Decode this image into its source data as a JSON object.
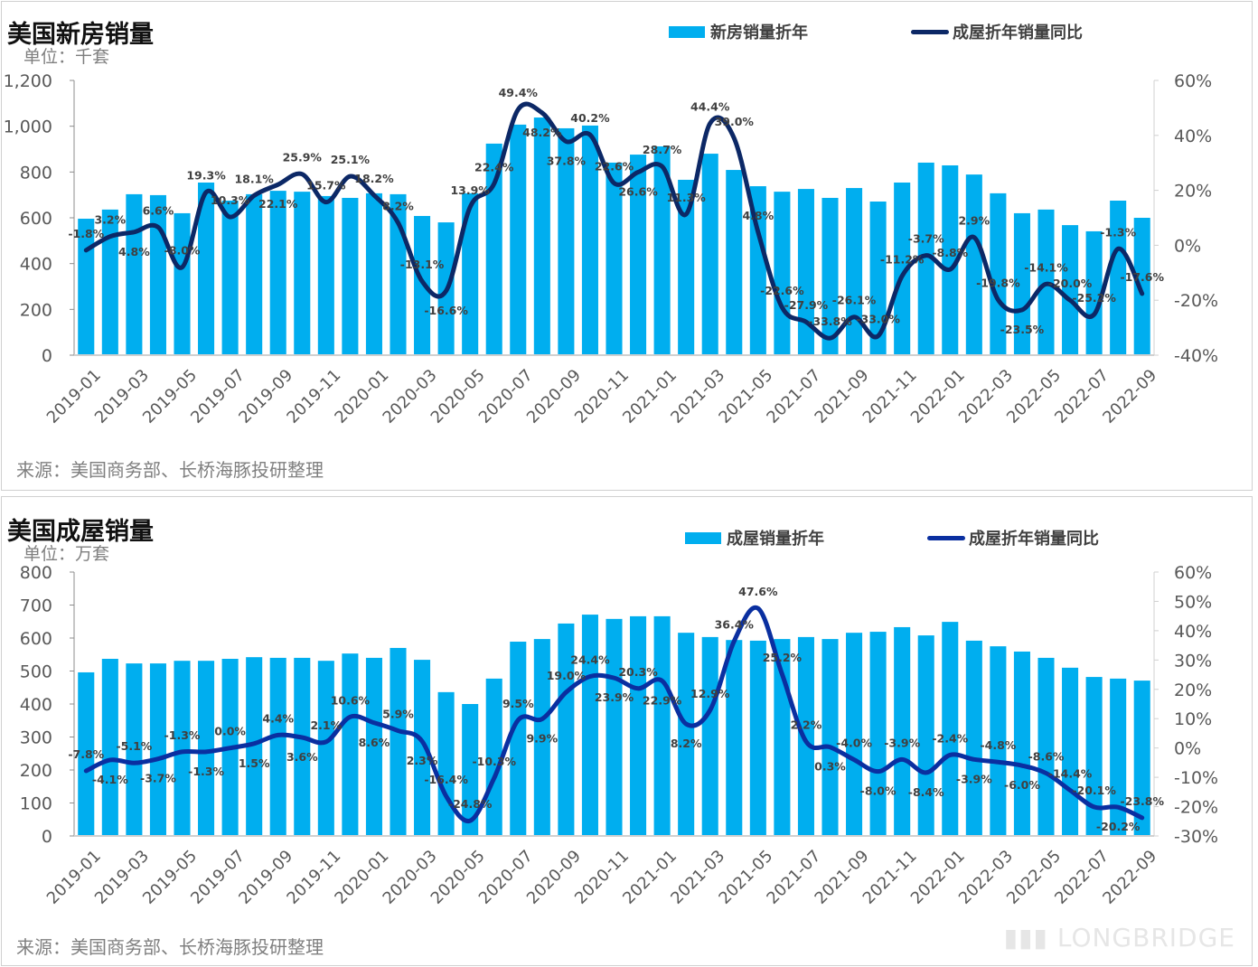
{
  "colors": {
    "bar": "#00aeef",
    "line_top": "#0c2866",
    "line_bottom": "#0a2fa0",
    "axis_text": "#595959",
    "label_text": "#404040"
  },
  "charts": [
    {
      "title": "美国新房销量",
      "unit": "单位：千套",
      "legend_bar": "新房销量折年",
      "legend_line": "成屋折年销量同比",
      "source": "来源：美国商务部、长桥海豚投研整理",
      "left_ticks": [
        "0",
        "200",
        "400",
        "600",
        "800",
        "1,000",
        "1,200"
      ],
      "right_ticks": [
        "-40%",
        "-20%",
        "0%",
        "20%",
        "40%",
        "60%"
      ]
    },
    {
      "title": "美国成屋销量",
      "unit": "单位：万套",
      "legend_bar": "成屋销量折年",
      "legend_line": "成屋折年销量同比",
      "source": "来源：美国商务部、长桥海豚投研整理",
      "left_ticks": [
        "0",
        "100",
        "200",
        "300",
        "400",
        "500",
        "600",
        "700",
        "800"
      ],
      "right_ticks": [
        "-30%",
        "-20%",
        "-10%",
        "0%",
        "10%",
        "20%",
        "30%",
        "40%",
        "50%",
        "60%"
      ]
    }
  ],
  "watermark": "LONGBRIDGE",
  "chart_data": [
    {
      "type": "bar+line",
      "title": "美国新房销量",
      "x": [
        "2019-01",
        "2019-02",
        "2019-03",
        "2019-04",
        "2019-05",
        "2019-06",
        "2019-07",
        "2019-08",
        "2019-09",
        "2019-10",
        "2019-11",
        "2019-12",
        "2020-01",
        "2020-02",
        "2020-03",
        "2020-04",
        "2020-05",
        "2020-06",
        "2020-07",
        "2020-08",
        "2020-09",
        "2020-10",
        "2020-11",
        "2020-12",
        "2021-01",
        "2021-02",
        "2021-03",
        "2021-04",
        "2021-05",
        "2021-06",
        "2021-07",
        "2021-08",
        "2021-09",
        "2021-10",
        "2021-11",
        "2021-12",
        "2022-01",
        "2022-02",
        "2022-03",
        "2022-04",
        "2022-05",
        "2022-06",
        "2022-07",
        "2022-08",
        "2022-09"
      ],
      "x_tick_labels": [
        "2019-01",
        "2019-03",
        "2019-05",
        "2019-07",
        "2019-09",
        "2019-11",
        "2020-01",
        "2020-03",
        "2020-05",
        "2020-07",
        "2020-09",
        "2020-11",
        "2021-01",
        "2021-03",
        "2021-05",
        "2021-07",
        "2021-09",
        "2021-11",
        "2022-01",
        "2022-03",
        "2022-05",
        "2022-07",
        "2022-09"
      ],
      "series": [
        {
          "name": "新房销量折年",
          "axis": "left",
          "type": "bar",
          "values": [
            596,
            636,
            703,
            699,
            620,
            754,
            675,
            703,
            718,
            714,
            695,
            687,
            707,
            703,
            608,
            580,
            707,
            924,
            1007,
            1038,
            991,
            1003,
            841,
            876,
            912,
            766,
            880,
            809,
            738,
            714,
            726,
            687,
            730,
            671,
            754,
            841,
            829,
            789,
            707,
            620,
            636,
            568,
            541,
            675,
            600
          ]
        },
        {
          "name": "成屋折年销量同比",
          "axis": "right",
          "type": "line",
          "unit": "%",
          "values": [
            -1.8,
            3.2,
            4.8,
            6.6,
            -8.0,
            19.3,
            10.3,
            18.1,
            22.1,
            25.9,
            15.7,
            25.1,
            18.2,
            8.2,
            -13.1,
            -16.6,
            13.9,
            22.4,
            49.4,
            48.2,
            37.8,
            40.2,
            22.6,
            26.6,
            28.7,
            11.3,
            44.4,
            39.0,
            4.8,
            -22.6,
            -27.9,
            -33.8,
            -26.1,
            -33.0,
            -11.2,
            -3.7,
            -8.8,
            2.9,
            -19.8,
            -23.5,
            -14.1,
            -20.0,
            -25.2,
            -1.3,
            -17.6
          ]
        }
      ],
      "ylabel": "单位：千套",
      "ylim": [
        0,
        1200
      ],
      "y2lim": [
        -40,
        60
      ],
      "grid": false,
      "legend": "top-right"
    },
    {
      "type": "bar+line",
      "title": "美国成屋销量",
      "x": [
        "2019-01",
        "2019-02",
        "2019-03",
        "2019-04",
        "2019-05",
        "2019-06",
        "2019-07",
        "2019-08",
        "2019-09",
        "2019-10",
        "2019-11",
        "2019-12",
        "2020-01",
        "2020-02",
        "2020-03",
        "2020-04",
        "2020-05",
        "2020-06",
        "2020-07",
        "2020-08",
        "2020-09",
        "2020-10",
        "2020-11",
        "2020-12",
        "2021-01",
        "2021-02",
        "2021-03",
        "2021-04",
        "2021-05",
        "2021-06",
        "2021-07",
        "2021-08",
        "2021-09",
        "2021-10",
        "2021-11",
        "2021-12",
        "2022-01",
        "2022-02",
        "2022-03",
        "2022-04",
        "2022-05",
        "2022-06",
        "2022-07",
        "2022-08",
        "2022-09"
      ],
      "x_tick_labels": [
        "2019-01",
        "2019-03",
        "2019-05",
        "2019-07",
        "2019-09",
        "2019-11",
        "2020-01",
        "2020-03",
        "2020-05",
        "2020-07",
        "2020-09",
        "2020-11",
        "2021-01",
        "2021-03",
        "2021-05",
        "2021-07",
        "2021-09",
        "2021-11",
        "2022-01",
        "2022-03",
        "2022-05",
        "2022-07",
        "2022-09"
      ],
      "series": [
        {
          "name": "成屋销量折年",
          "axis": "left",
          "type": "bar",
          "values": [
            496,
            537,
            523,
            523,
            531,
            531,
            537,
            542,
            540,
            540,
            531,
            553,
            540,
            570,
            534,
            436,
            400,
            477,
            589,
            597,
            644,
            671,
            658,
            666,
            666,
            616,
            603,
            594,
            592,
            597,
            603,
            597,
            616,
            619,
            633,
            608,
            649,
            592,
            575,
            559,
            540,
            510,
            482,
            477,
            471
          ]
        },
        {
          "name": "成屋折年销量同比",
          "axis": "right",
          "type": "line",
          "unit": "%",
          "values": [
            -7.8,
            -4.1,
            -5.1,
            -3.7,
            -1.3,
            -1.3,
            0.0,
            1.5,
            4.4,
            3.6,
            2.1,
            10.6,
            8.6,
            5.9,
            2.3,
            -16.4,
            -24.8,
            -10.3,
            9.5,
            9.9,
            19.0,
            24.4,
            23.9,
            20.3,
            22.9,
            8.2,
            12.9,
            36.4,
            47.6,
            25.2,
            2.2,
            0.3,
            -4.0,
            -8.0,
            -3.9,
            -8.4,
            -2.4,
            -3.9,
            -4.8,
            -6.0,
            -8.6,
            -14.4,
            -20.1,
            -20.2,
            -23.8
          ]
        }
      ],
      "ylabel": "单位：万套",
      "ylim": [
        0,
        800
      ],
      "y2lim": [
        -30,
        60
      ],
      "grid": false,
      "legend": "top-right"
    }
  ]
}
